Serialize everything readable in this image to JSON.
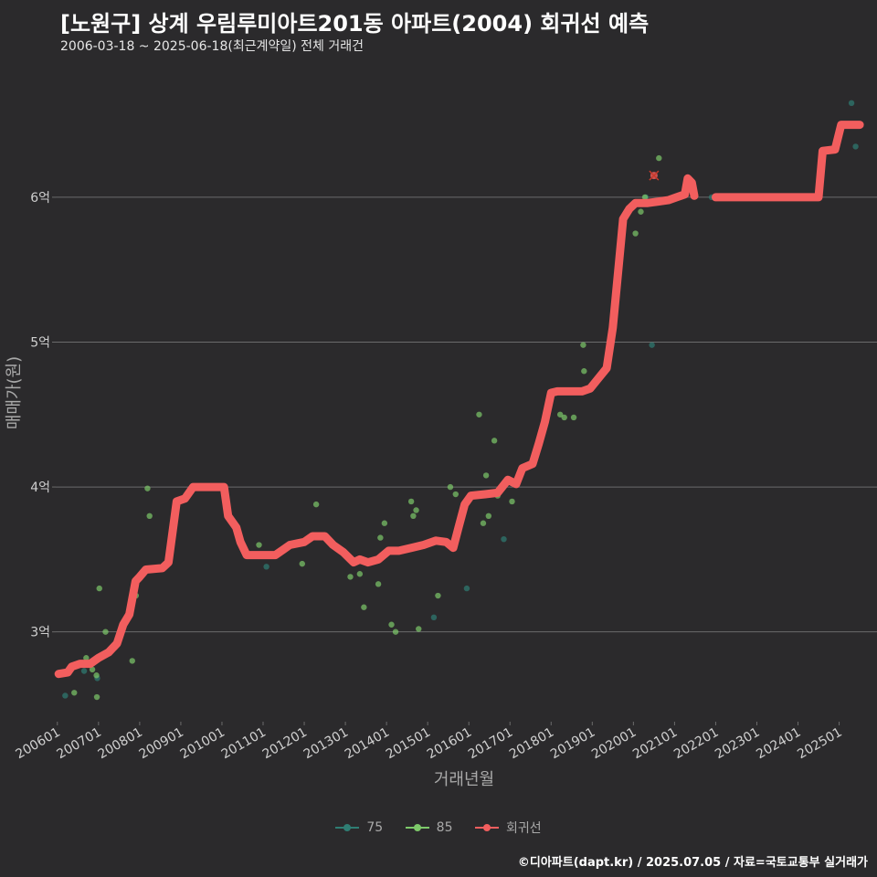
{
  "header": {
    "title": "[노원구] 상계 우림루미아트201동 아파트(2004) 회귀선 예측",
    "subtitle": "2006-03-18 ~ 2025-06-18(최근계약일) 전체 거래건"
  },
  "caption": "©디아파트(dapt.kr) / 2025.07.05 / 자료=국토교통부 실거래가",
  "colors": {
    "background": "#2b2a2c",
    "grid": "#6b6b6b",
    "regression": "#f25e5e",
    "s75": "#2f7d73",
    "s85": "#7dc96a"
  },
  "legend": [
    {
      "label": "75",
      "color": "#2f7d73",
      "kind": "point"
    },
    {
      "label": "85",
      "color": "#7dc96a",
      "kind": "point"
    },
    {
      "label": "회귀선",
      "color": "#f25e5e",
      "kind": "line"
    }
  ],
  "chart_data": {
    "type": "scatter",
    "title": "[노원구] 상계 우림루미아트201동 아파트(2004) 회귀선 예측",
    "xlabel": "거래년월",
    "ylabel": "매매가(원)",
    "xlim": [
      2005.96,
      2025.92
    ],
    "ylim": [
      2.38,
      6.92
    ],
    "x_ticks": [
      {
        "value": 2006.0,
        "label": "200601"
      },
      {
        "value": 2007.0,
        "label": "200701"
      },
      {
        "value": 2008.0,
        "label": "200801"
      },
      {
        "value": 2009.0,
        "label": "200901"
      },
      {
        "value": 2010.0,
        "label": "201001"
      },
      {
        "value": 2011.0,
        "label": "201101"
      },
      {
        "value": 2012.0,
        "label": "201201"
      },
      {
        "value": 2013.0,
        "label": "201301"
      },
      {
        "value": 2014.0,
        "label": "201401"
      },
      {
        "value": 2015.0,
        "label": "201501"
      },
      {
        "value": 2016.0,
        "label": "201601"
      },
      {
        "value": 2017.0,
        "label": "201701"
      },
      {
        "value": 2018.0,
        "label": "201801"
      },
      {
        "value": 2019.0,
        "label": "201901"
      },
      {
        "value": 2020.0,
        "label": "202001"
      },
      {
        "value": 2021.0,
        "label": "202101"
      },
      {
        "value": 2022.0,
        "label": "202201"
      },
      {
        "value": 2023.0,
        "label": "202301"
      },
      {
        "value": 2024.0,
        "label": "202401"
      },
      {
        "value": 2025.0,
        "label": "202501"
      }
    ],
    "y_ticks": [
      {
        "value": 3,
        "label": "3억"
      },
      {
        "value": 4,
        "label": "4억"
      },
      {
        "value": 5,
        "label": "5억"
      },
      {
        "value": 6,
        "label": "6억"
      }
    ],
    "series": [
      {
        "name": "75",
        "type": "scatter",
        "points": [
          [
            2006.19,
            2.56
          ],
          [
            2006.65,
            2.73
          ],
          [
            2006.97,
            2.68
          ],
          [
            2011.08,
            3.45
          ],
          [
            2015.95,
            3.3
          ],
          [
            2016.85,
            3.64
          ],
          [
            2015.15,
            3.1
          ],
          [
            2021.9,
            6.0
          ],
          [
            2025.3,
            6.65
          ],
          [
            2025.4,
            6.35
          ],
          [
            2020.45,
            4.98
          ],
          [
            2020.3,
            6.0
          ]
        ]
      },
      {
        "name": "85",
        "type": "scatter",
        "points": [
          [
            2006.41,
            2.58
          ],
          [
            2006.7,
            2.82
          ],
          [
            2006.85,
            2.74
          ],
          [
            2006.95,
            2.7
          ],
          [
            2006.96,
            2.55
          ],
          [
            2007.02,
            3.3
          ],
          [
            2007.17,
            3.0
          ],
          [
            2007.82,
            2.8
          ],
          [
            2007.91,
            3.25
          ],
          [
            2008.19,
            3.99
          ],
          [
            2008.24,
            3.8
          ],
          [
            2010.9,
            3.6
          ],
          [
            2011.95,
            3.47
          ],
          [
            2012.29,
            3.88
          ],
          [
            2013.12,
            3.38
          ],
          [
            2013.35,
            3.4
          ],
          [
            2013.45,
            3.17
          ],
          [
            2013.8,
            3.33
          ],
          [
            2013.85,
            3.65
          ],
          [
            2013.95,
            3.75
          ],
          [
            2014.12,
            3.05
          ],
          [
            2014.22,
            3.0
          ],
          [
            2014.6,
            3.9
          ],
          [
            2014.65,
            3.8
          ],
          [
            2014.72,
            3.84
          ],
          [
            2014.78,
            3.02
          ],
          [
            2015.25,
            3.25
          ],
          [
            2015.55,
            4.0
          ],
          [
            2015.68,
            3.95
          ],
          [
            2016.2,
            3.95
          ],
          [
            2016.25,
            4.5
          ],
          [
            2016.35,
            3.75
          ],
          [
            2016.42,
            4.08
          ],
          [
            2016.48,
            3.8
          ],
          [
            2016.62,
            4.32
          ],
          [
            2016.7,
            3.94
          ],
          [
            2017.05,
            3.9
          ],
          [
            2018.22,
            4.5
          ],
          [
            2018.32,
            4.48
          ],
          [
            2018.55,
            4.48
          ],
          [
            2018.78,
            4.98
          ],
          [
            2018.8,
            4.8
          ],
          [
            2020.05,
            5.75
          ],
          [
            2020.18,
            5.9
          ],
          [
            2020.62,
            6.27
          ],
          [
            2020.28,
            6.0
          ]
        ]
      }
    ],
    "regression": {
      "name": "회귀선",
      "points": [
        [
          2006.03,
          2.71
        ],
        [
          2006.25,
          2.72
        ],
        [
          2006.35,
          2.76
        ],
        [
          2006.55,
          2.78
        ],
        [
          2006.8,
          2.78
        ],
        [
          2007.0,
          2.82
        ],
        [
          2007.25,
          2.86
        ],
        [
          2007.45,
          2.92
        ],
        [
          2007.6,
          3.05
        ],
        [
          2007.75,
          3.12
        ],
        [
          2007.9,
          3.35
        ],
        [
          2008.0,
          3.38
        ],
        [
          2008.15,
          3.43
        ],
        [
          2008.55,
          3.44
        ],
        [
          2008.7,
          3.48
        ],
        [
          2008.9,
          3.9
        ],
        [
          2009.1,
          3.92
        ],
        [
          2009.3,
          4.0
        ],
        [
          2009.6,
          4.0
        ],
        [
          2010.05,
          4.0
        ],
        [
          2010.15,
          3.8
        ],
        [
          2010.35,
          3.72
        ],
        [
          2010.45,
          3.62
        ],
        [
          2010.6,
          3.53
        ],
        [
          2011.3,
          3.53
        ],
        [
          2011.5,
          3.57
        ],
        [
          2011.65,
          3.6
        ],
        [
          2012.0,
          3.62
        ],
        [
          2012.2,
          3.66
        ],
        [
          2012.5,
          3.66
        ],
        [
          2012.7,
          3.6
        ],
        [
          2012.95,
          3.55
        ],
        [
          2013.2,
          3.48
        ],
        [
          2013.35,
          3.5
        ],
        [
          2013.55,
          3.48
        ],
        [
          2013.8,
          3.5
        ],
        [
          2014.05,
          3.56
        ],
        [
          2014.3,
          3.56
        ],
        [
          2014.6,
          3.58
        ],
        [
          2014.9,
          3.6
        ],
        [
          2015.2,
          3.63
        ],
        [
          2015.45,
          3.62
        ],
        [
          2015.62,
          3.58
        ],
        [
          2015.75,
          3.72
        ],
        [
          2015.9,
          3.88
        ],
        [
          2016.05,
          3.94
        ],
        [
          2016.4,
          3.95
        ],
        [
          2016.7,
          3.96
        ],
        [
          2016.95,
          4.05
        ],
        [
          2017.15,
          4.02
        ],
        [
          2017.3,
          4.13
        ],
        [
          2017.55,
          4.16
        ],
        [
          2017.7,
          4.3
        ],
        [
          2017.85,
          4.45
        ],
        [
          2018.0,
          4.65
        ],
        [
          2018.15,
          4.66
        ],
        [
          2018.4,
          4.66
        ],
        [
          2018.75,
          4.66
        ],
        [
          2018.95,
          4.68
        ],
        [
          2019.15,
          4.75
        ],
        [
          2019.35,
          4.82
        ],
        [
          2019.5,
          5.1
        ],
        [
          2019.65,
          5.55
        ],
        [
          2019.75,
          5.85
        ],
        [
          2019.9,
          5.92
        ],
        [
          2020.05,
          5.96
        ],
        [
          2020.35,
          5.96
        ],
        [
          2020.6,
          5.97
        ],
        [
          2020.85,
          5.98
        ],
        [
          2021.05,
          6.0
        ],
        [
          2021.25,
          6.02
        ],
        [
          2021.32,
          6.13
        ],
        [
          2021.42,
          6.1
        ],
        [
          2021.48,
          6.01
        ]
      ],
      "points_late": [
        [
          2022.0,
          6.0
        ],
        [
          2023.0,
          6.0
        ],
        [
          2024.2,
          6.0
        ],
        [
          2024.5,
          6.0
        ],
        [
          2024.6,
          6.32
        ],
        [
          2024.9,
          6.33
        ],
        [
          2025.05,
          6.5
        ],
        [
          2025.5,
          6.5
        ]
      ]
    },
    "outlier_marker": [
      2020.5,
      6.15
    ]
  }
}
